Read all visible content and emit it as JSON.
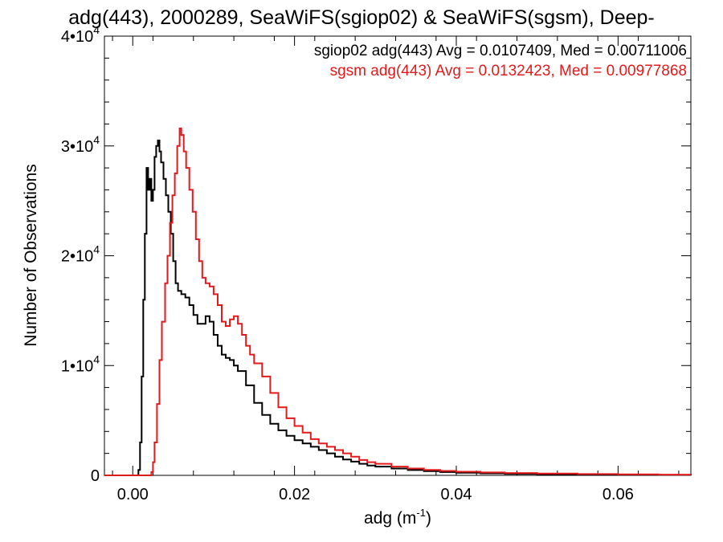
{
  "chart_data": {
    "type": "line",
    "title": "adg(443), 2000289, SeaWiFS(sgiop02) & SeaWiFS(sgsm), Deep-",
    "xlabel": "adg (m",
    "xlabel_sup": "-1",
    "xlabel_end": ")",
    "ylabel": "Number of Observations",
    "xlim": [
      -0.0035,
      0.069
    ],
    "ylim": [
      0,
      40000
    ],
    "x_ticks": [
      {
        "value": 0.0,
        "label": "0.00"
      },
      {
        "value": 0.02,
        "label": "0.02"
      },
      {
        "value": 0.04,
        "label": "0.04"
      },
      {
        "value": 0.06,
        "label": "0.06"
      }
    ],
    "y_ticks": [
      {
        "value": 0,
        "base": "0",
        "exp": ""
      },
      {
        "value": 10000,
        "base": "1•10",
        "exp": "4"
      },
      {
        "value": 20000,
        "base": "2•10",
        "exp": "4"
      },
      {
        "value": 30000,
        "base": "3•10",
        "exp": "4"
      },
      {
        "value": 40000,
        "base": "4•10",
        "exp": "4"
      }
    ],
    "series": [
      {
        "name": "sgiop02",
        "legend": "sgiop02 adg(443) Avg = 0.0107409, Med = 0.00711006",
        "color": "#000000",
        "points": [
          [
            -0.0035,
            0
          ],
          [
            0.0005,
            0
          ],
          [
            0.0007,
            500
          ],
          [
            0.0009,
            3000
          ],
          [
            0.0011,
            9000
          ],
          [
            0.0013,
            16000
          ],
          [
            0.0015,
            22000
          ],
          [
            0.0017,
            28000
          ],
          [
            0.0019,
            26000
          ],
          [
            0.0021,
            27000
          ],
          [
            0.0023,
            25000
          ],
          [
            0.0025,
            26000
          ],
          [
            0.0027,
            29000
          ],
          [
            0.0029,
            30000
          ],
          [
            0.0031,
            30500
          ],
          [
            0.0033,
            29500
          ],
          [
            0.0035,
            28500
          ],
          [
            0.0038,
            27000
          ],
          [
            0.0041,
            25500
          ],
          [
            0.0044,
            24000
          ],
          [
            0.0047,
            22000
          ],
          [
            0.005,
            19500
          ],
          [
            0.0053,
            17500
          ],
          [
            0.0056,
            16800
          ],
          [
            0.006,
            16500
          ],
          [
            0.0065,
            16200
          ],
          [
            0.007,
            15500
          ],
          [
            0.0075,
            14600
          ],
          [
            0.008,
            13800
          ],
          [
            0.0085,
            13800
          ],
          [
            0.009,
            14500
          ],
          [
            0.0095,
            14000
          ],
          [
            0.01,
            12800
          ],
          [
            0.0105,
            11800
          ],
          [
            0.011,
            11000
          ],
          [
            0.0115,
            10700
          ],
          [
            0.012,
            10500
          ],
          [
            0.0125,
            10000
          ],
          [
            0.013,
            9500
          ],
          [
            0.014,
            8200
          ],
          [
            0.015,
            6600
          ],
          [
            0.016,
            5500
          ],
          [
            0.017,
            4700
          ],
          [
            0.018,
            4100
          ],
          [
            0.019,
            3600
          ],
          [
            0.02,
            3200
          ],
          [
            0.021,
            2900
          ],
          [
            0.022,
            2600
          ],
          [
            0.023,
            2300
          ],
          [
            0.024,
            2000
          ],
          [
            0.025,
            1700
          ],
          [
            0.026,
            1450
          ],
          [
            0.027,
            1250
          ],
          [
            0.028,
            1050
          ],
          [
            0.029,
            900
          ],
          [
            0.03,
            800
          ],
          [
            0.032,
            620
          ],
          [
            0.034,
            480
          ],
          [
            0.036,
            380
          ],
          [
            0.038,
            300
          ],
          [
            0.04,
            240
          ],
          [
            0.043,
            180
          ],
          [
            0.046,
            140
          ],
          [
            0.05,
            100
          ],
          [
            0.055,
            70
          ],
          [
            0.06,
            50
          ],
          [
            0.065,
            35
          ],
          [
            0.069,
            25
          ]
        ]
      },
      {
        "name": "sgsm",
        "legend": "sgsm adg(443) Avg = 0.0132423, Med = 0.00977868",
        "color": "#e31a1c",
        "points": [
          [
            -0.0035,
            0
          ],
          [
            0.0021,
            0
          ],
          [
            0.0023,
            300
          ],
          [
            0.0025,
            1200
          ],
          [
            0.0027,
            3000
          ],
          [
            0.003,
            6500
          ],
          [
            0.0033,
            10500
          ],
          [
            0.0036,
            14000
          ],
          [
            0.004,
            17500
          ],
          [
            0.0043,
            20000
          ],
          [
            0.0046,
            23000
          ],
          [
            0.0049,
            25500
          ],
          [
            0.0052,
            27500
          ],
          [
            0.0055,
            30000
          ],
          [
            0.0058,
            31600
          ],
          [
            0.006,
            31000
          ],
          [
            0.0063,
            29500
          ],
          [
            0.0066,
            28000
          ],
          [
            0.007,
            26000
          ],
          [
            0.0074,
            24000
          ],
          [
            0.0078,
            21500
          ],
          [
            0.0082,
            19500
          ],
          [
            0.0086,
            18000
          ],
          [
            0.009,
            17500
          ],
          [
            0.0095,
            17200
          ],
          [
            0.01,
            16500
          ],
          [
            0.0105,
            15500
          ],
          [
            0.011,
            14000
          ],
          [
            0.0115,
            13600
          ],
          [
            0.012,
            14200
          ],
          [
            0.0125,
            14500
          ],
          [
            0.013,
            13800
          ],
          [
            0.0135,
            12800
          ],
          [
            0.014,
            11800
          ],
          [
            0.0145,
            11000
          ],
          [
            0.015,
            10200
          ],
          [
            0.016,
            9000
          ],
          [
            0.017,
            7500
          ],
          [
            0.018,
            6200
          ],
          [
            0.019,
            5200
          ],
          [
            0.02,
            4500
          ],
          [
            0.021,
            3900
          ],
          [
            0.022,
            3300
          ],
          [
            0.023,
            2900
          ],
          [
            0.024,
            2600
          ],
          [
            0.025,
            2300
          ],
          [
            0.026,
            2000
          ],
          [
            0.027,
            1700
          ],
          [
            0.028,
            1400
          ],
          [
            0.029,
            1200
          ],
          [
            0.03,
            1050
          ],
          [
            0.032,
            800
          ],
          [
            0.034,
            620
          ],
          [
            0.036,
            500
          ],
          [
            0.038,
            400
          ],
          [
            0.04,
            330
          ],
          [
            0.043,
            260
          ],
          [
            0.046,
            210
          ],
          [
            0.05,
            160
          ],
          [
            0.055,
            120
          ],
          [
            0.06,
            90
          ],
          [
            0.065,
            65
          ],
          [
            0.069,
            50
          ]
        ]
      }
    ]
  }
}
